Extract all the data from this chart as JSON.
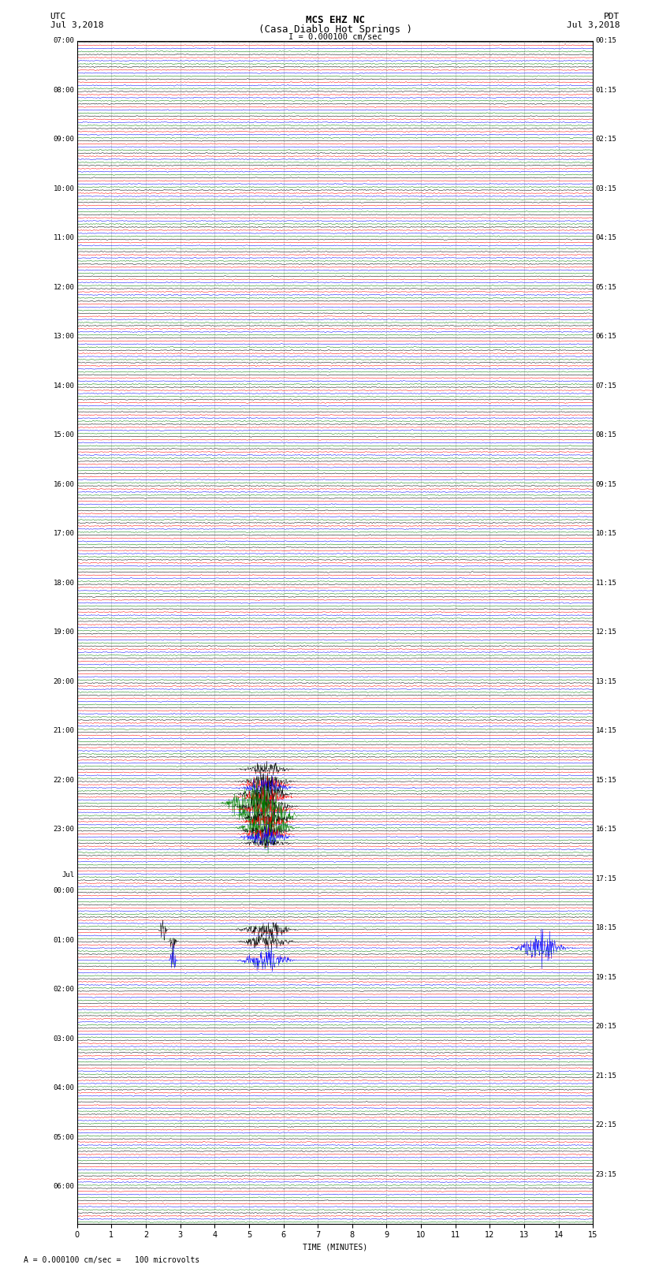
{
  "title_line1": "MCS EHZ NC",
  "title_line2": "(Casa Diablo Hot Springs )",
  "title_line3": "I = 0.000100 cm/sec",
  "left_label_top": "UTC",
  "left_label_date": "Jul 3,2018",
  "right_label_top": "PDT",
  "right_label_date": "Jul 3,2018",
  "xlabel": "TIME (MINUTES)",
  "footer": "= 0.000100 cm/sec =   100 microvolts",
  "xlim": [
    0,
    15
  ],
  "colors": [
    "black",
    "red",
    "blue",
    "green"
  ],
  "utc_labels": [
    "07:00",
    "",
    "",
    "",
    "08:00",
    "",
    "",
    "",
    "09:00",
    "",
    "",
    "",
    "10:00",
    "",
    "",
    "",
    "11:00",
    "",
    "",
    "",
    "12:00",
    "",
    "",
    "",
    "13:00",
    "",
    "",
    "",
    "14:00",
    "",
    "",
    "",
    "15:00",
    "",
    "",
    "",
    "16:00",
    "",
    "",
    "",
    "17:00",
    "",
    "",
    "",
    "18:00",
    "",
    "",
    "",
    "19:00",
    "",
    "",
    "",
    "20:00",
    "",
    "",
    "",
    "21:00",
    "",
    "",
    "",
    "22:00",
    "",
    "",
    "",
    "23:00",
    "",
    "",
    "",
    "Jul",
    "00:00",
    "",
    "",
    "",
    "01:00",
    "",
    "",
    "",
    "02:00",
    "",
    "",
    "",
    "03:00",
    "",
    "",
    "",
    "04:00",
    "",
    "",
    "",
    "05:00",
    "",
    "",
    "",
    "06:00",
    "",
    ""
  ],
  "pdt_labels": [
    "00:15",
    "",
    "",
    "",
    "01:15",
    "",
    "",
    "",
    "02:15",
    "",
    "",
    "",
    "03:15",
    "",
    "",
    "",
    "04:15",
    "",
    "",
    "",
    "05:15",
    "",
    "",
    "",
    "06:15",
    "",
    "",
    "",
    "07:15",
    "",
    "",
    "",
    "08:15",
    "",
    "",
    "",
    "09:15",
    "",
    "",
    "",
    "10:15",
    "",
    "",
    "",
    "11:15",
    "",
    "",
    "",
    "12:15",
    "",
    "",
    "",
    "13:15",
    "",
    "",
    "",
    "14:15",
    "",
    "",
    "",
    "15:15",
    "",
    "",
    "",
    "16:15",
    "",
    "",
    "",
    "17:15",
    "",
    "",
    "",
    "18:15",
    "",
    "",
    "",
    "19:15",
    "",
    "",
    "",
    "20:15",
    "",
    "",
    "",
    "21:15",
    "",
    "",
    "",
    "22:15",
    "",
    "",
    "",
    "23:15",
    "",
    ""
  ],
  "n_rows": 96,
  "traces_per_row": 4,
  "background_color": "white",
  "grid_color": "#aaaaaa",
  "noise_amplitude": 0.06,
  "quake_rows_green": [
    61,
    62,
    63
  ],
  "quake_rows_blue": [
    60,
    64,
    73,
    74
  ],
  "quake_rows_red": [
    60,
    61,
    62,
    63,
    64
  ],
  "quake_rows_black": [
    59,
    60,
    61,
    62,
    63,
    64,
    65,
    72,
    73
  ],
  "quake_amp_green": [
    3.0,
    6.0,
    3.5
  ],
  "quake_amp_blue": [
    1.5,
    1.5,
    3.0,
    2.0
  ],
  "quake_amp_red": [
    1.2,
    1.5,
    1.5,
    1.2,
    1.2
  ],
  "quake_amp_black": [
    1.0,
    1.5,
    2.0,
    2.5,
    1.5,
    1.0,
    0.8,
    2.0,
    1.5
  ],
  "quake_col_green": [
    5.0,
    5.5,
    5.5
  ],
  "quake_col_blue": [
    5.5,
    5.5,
    13.5,
    5.5
  ],
  "quake_col_red": [
    5.5,
    5.5,
    5.5,
    5.5,
    5.5
  ],
  "quake_col_black": [
    5.5,
    5.5,
    5.5,
    5.5,
    5.5,
    5.5,
    5.5,
    5.5,
    5.5
  ],
  "spike_rows_black": [
    72,
    73
  ],
  "spike_cols_black": [
    2.5,
    2.8
  ],
  "spike_amps_black": [
    3.0,
    3.0
  ],
  "spike_rows_blue": [
    74
  ],
  "spike_cols_blue": [
    2.8
  ],
  "spike_amps_blue": [
    3.0
  ]
}
